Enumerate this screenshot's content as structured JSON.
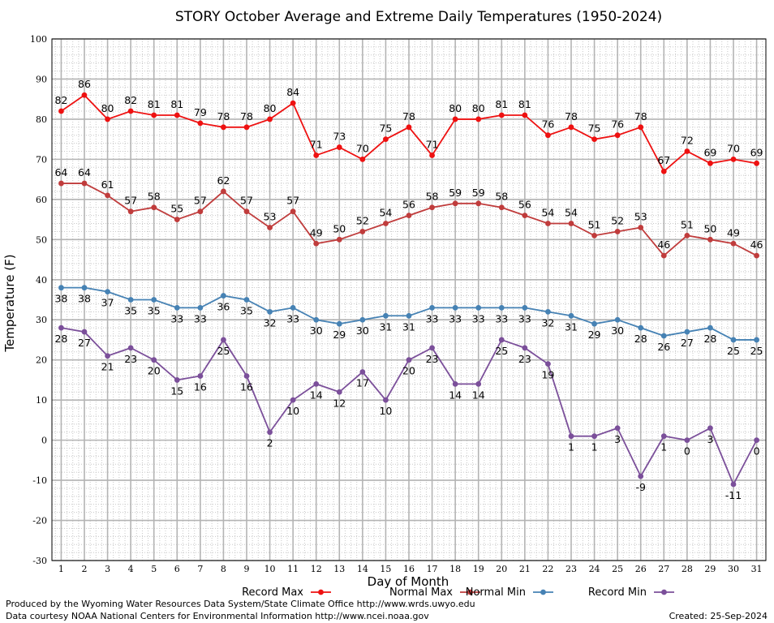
{
  "chart_data": {
    "type": "line",
    "title": "STORY October Average and Extreme Daily Temperatures (1950-2024)",
    "xlabel": "Day of Month",
    "ylabel": "Temperature (F)",
    "x": [
      1,
      2,
      3,
      4,
      5,
      6,
      7,
      8,
      9,
      10,
      11,
      12,
      13,
      14,
      15,
      16,
      17,
      18,
      19,
      20,
      21,
      22,
      23,
      24,
      25,
      26,
      27,
      28,
      29,
      30,
      31
    ],
    "ylim": [
      -30,
      100
    ],
    "yticks": [
      -30,
      -20,
      -10,
      0,
      10,
      20,
      30,
      40,
      50,
      60,
      70,
      80,
      90,
      100
    ],
    "grid": true,
    "legend_position": "bottom",
    "series": [
      {
        "name": "Record Max",
        "color": "#ee1111",
        "label_position": "above",
        "values": [
          82,
          86,
          80,
          82,
          81,
          81,
          79,
          78,
          78,
          80,
          84,
          71,
          73,
          70,
          75,
          78,
          71,
          80,
          80,
          81,
          81,
          76,
          78,
          75,
          76,
          78,
          67,
          72,
          69,
          70,
          69
        ]
      },
      {
        "name": "Normal Max",
        "color": "#c03c3c",
        "label_position": "above",
        "values": [
          64,
          64,
          61,
          57,
          58,
          55,
          57,
          62,
          57,
          53,
          57,
          49,
          50,
          52,
          54,
          56,
          58,
          59,
          59,
          58,
          56,
          54,
          54,
          51,
          52,
          53,
          46,
          51,
          50,
          49,
          46
        ]
      },
      {
        "name": "Normal Min",
        "color": "#4682b4",
        "label_position": "below",
        "values": [
          38,
          38,
          37,
          35,
          35,
          33,
          33,
          36,
          35,
          32,
          33,
          30,
          29,
          30,
          31,
          31,
          33,
          33,
          33,
          33,
          33,
          32,
          31,
          29,
          30,
          28,
          26,
          27,
          28,
          25,
          25
        ]
      },
      {
        "name": "Record Min",
        "color": "#7b4f9a",
        "label_position": "below",
        "values": [
          28,
          27,
          21,
          23,
          20,
          15,
          16,
          25,
          16,
          2,
          10,
          14,
          12,
          17,
          10,
          20,
          23,
          14,
          14,
          25,
          23,
          19,
          1,
          1,
          3,
          -9,
          1,
          0,
          3,
          -11,
          0
        ]
      }
    ]
  },
  "footer": {
    "producer": "Produced by the Wyoming Water Resources Data System/State Climate Office http://www.wrds.uwyo.edu",
    "courtesy": "Data courtesy NOAA National Centers for Environmental Information http://www.ncei.noaa.gov",
    "created": "Created:  25-Sep-2024"
  }
}
